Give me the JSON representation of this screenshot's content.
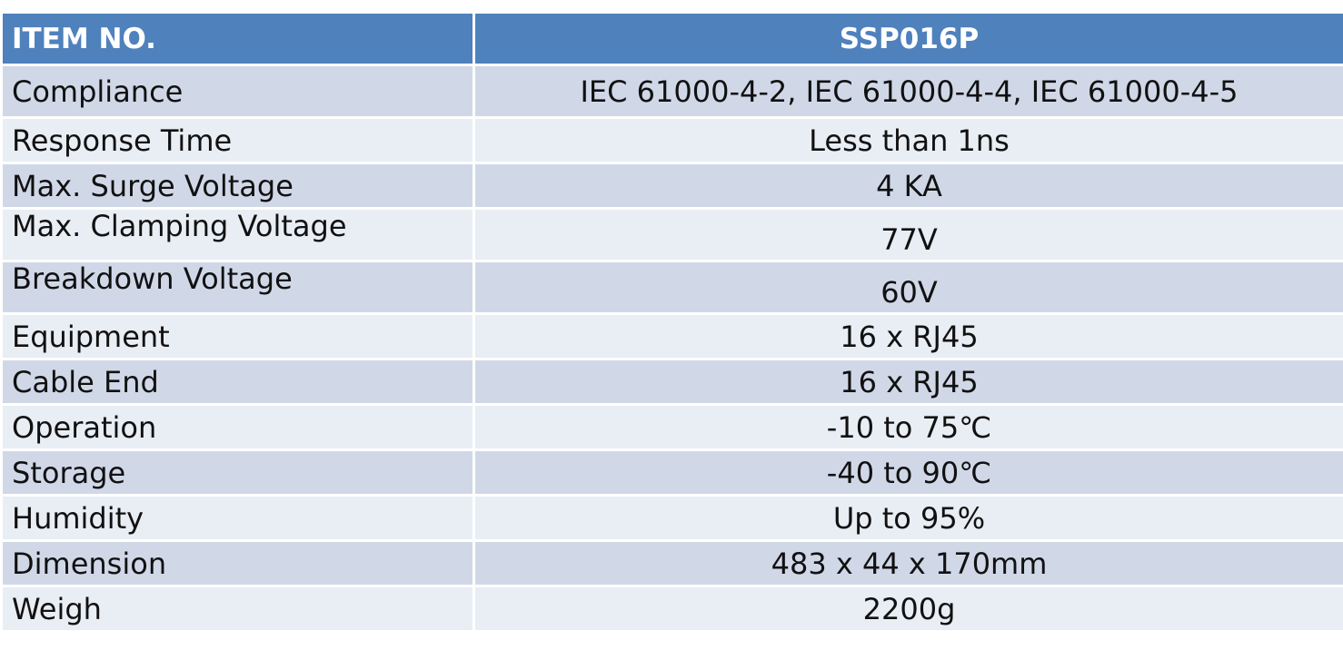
{
  "header": {
    "label": "ITEM NO.",
    "value": "SSP016P"
  },
  "rows": [
    {
      "label": "Compliance",
      "value": "IEC 61000-4-2, IEC 61000-4-4, IEC 61000-4-5"
    },
    {
      "label": "Response Time",
      "value": "Less than 1ns"
    },
    {
      "label": "Max. Surge Voltage",
      "value": "4 KA"
    },
    {
      "label": "Max. Clamping Voltage",
      "value": "77V"
    },
    {
      "label": "Breakdown Voltage",
      "value": "60V"
    },
    {
      "label": "Equipment",
      "value": "16 x RJ45"
    },
    {
      "label": "Cable End",
      "value": "16 x RJ45"
    },
    {
      "label": "Operation",
      "value": "-10 to 75℃"
    },
    {
      "label": "Storage",
      "value": "-40 to 90℃"
    },
    {
      "label": "Humidity",
      "value": "Up to 95%"
    },
    {
      "label": "Dimension",
      "value": "483 x 44 x 170mm"
    },
    {
      "label": "Weigh",
      "value": "2200g"
    }
  ],
  "colors": {
    "header_bg": "#4f81bd",
    "header_text": "#ffffff",
    "row_odd_bg": "#d0d8e8",
    "row_even_bg": "#e9edf4"
  }
}
